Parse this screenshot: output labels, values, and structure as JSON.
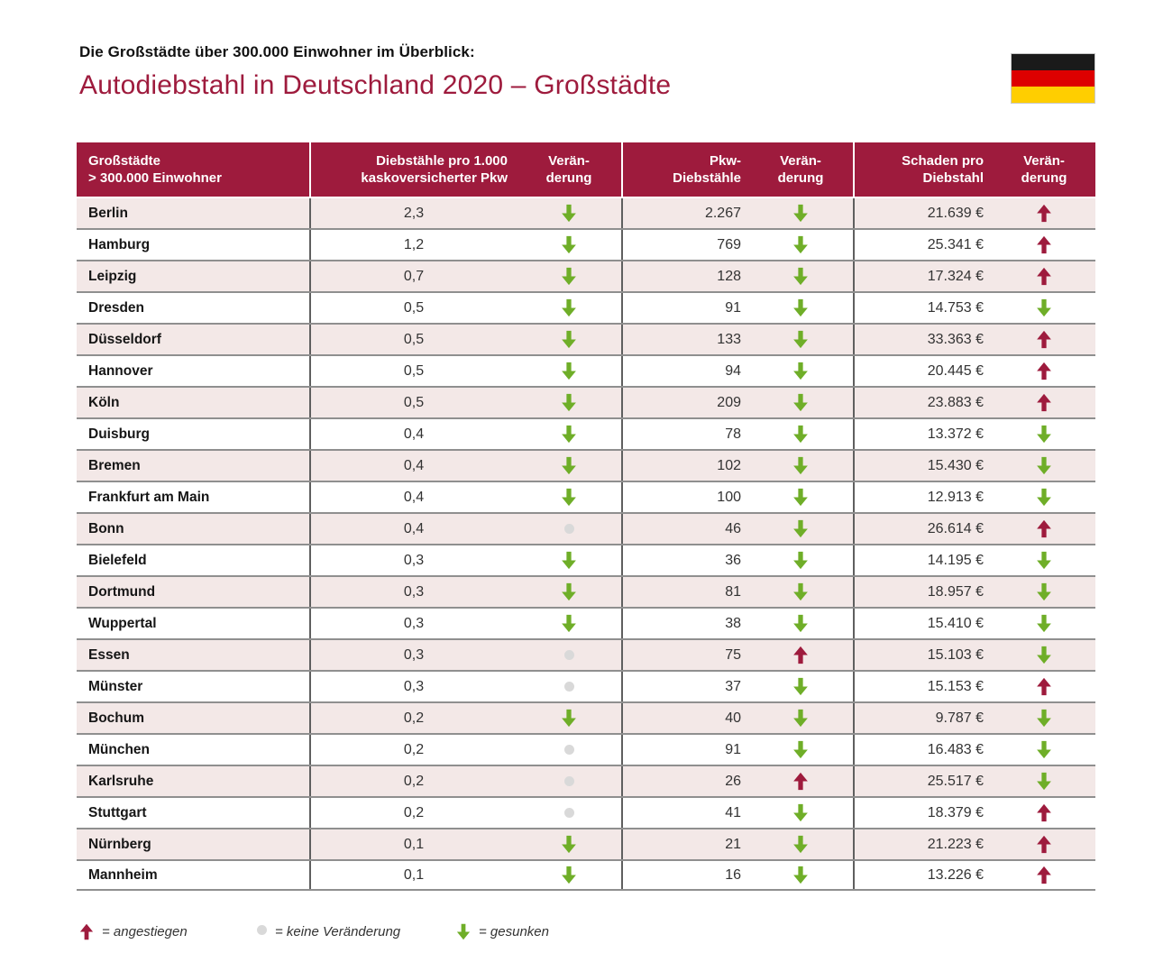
{
  "header": {
    "kicker": "Die Großstädte über 300.000 Einwohner im Überblick:",
    "title": "Autodiebstahl in Deutschland 2020 – Großstädte"
  },
  "flag": {
    "name": "germany-flag",
    "colors": [
      "#1a1a1a",
      "#dd0000",
      "#ffce00"
    ]
  },
  "colors": {
    "accent_red": "#9e1b3d",
    "arrow_green": "#6fae28",
    "neutral_dot": "#d9d9d9",
    "row_pink": "#f3e8e7"
  },
  "table": {
    "columns": [
      "Großstädte\n> 300.000 Einwohner",
      "Diebstähle pro 1.000\nkaskoversicherter Pkw",
      "Verän-\nderung",
      "Pkw-\nDiebstähle",
      "Verän-\nderung",
      "Schaden pro\nDiebstahl",
      "Verän-\nderung"
    ]
  },
  "chart_data": {
    "type": "table",
    "title": "Autodiebstahl in Deutschland 2020 – Großstädte",
    "subtitle": "Die Großstädte über 300.000 Einwohner im Überblick:",
    "columns": [
      "Großstädte > 300.000 Einwohner",
      "Diebstähle pro 1.000 kaskoversicherter Pkw",
      "Veränderung",
      "Pkw-Diebstähle",
      "Veränderung",
      "Schaden pro Diebstahl",
      "Veränderung"
    ],
    "rows": [
      {
        "city": "Berlin",
        "rate": "2,3",
        "rate_change": "down",
        "thefts": "2.267",
        "thefts_change": "down",
        "damage": "21.639 €",
        "damage_change": "up"
      },
      {
        "city": "Hamburg",
        "rate": "1,2",
        "rate_change": "down",
        "thefts": "769",
        "thefts_change": "down",
        "damage": "25.341 €",
        "damage_change": "up"
      },
      {
        "city": "Leipzig",
        "rate": "0,7",
        "rate_change": "down",
        "thefts": "128",
        "thefts_change": "down",
        "damage": "17.324 €",
        "damage_change": "up"
      },
      {
        "city": "Dresden",
        "rate": "0,5",
        "rate_change": "down",
        "thefts": "91",
        "thefts_change": "down",
        "damage": "14.753 €",
        "damage_change": "down"
      },
      {
        "city": "Düsseldorf",
        "rate": "0,5",
        "rate_change": "down",
        "thefts": "133",
        "thefts_change": "down",
        "damage": "33.363 €",
        "damage_change": "up"
      },
      {
        "city": "Hannover",
        "rate": "0,5",
        "rate_change": "down",
        "thefts": "94",
        "thefts_change": "down",
        "damage": "20.445 €",
        "damage_change": "up"
      },
      {
        "city": "Köln",
        "rate": "0,5",
        "rate_change": "down",
        "thefts": "209",
        "thefts_change": "down",
        "damage": "23.883 €",
        "damage_change": "up"
      },
      {
        "city": "Duisburg",
        "rate": "0,4",
        "rate_change": "down",
        "thefts": "78",
        "thefts_change": "down",
        "damage": "13.372 €",
        "damage_change": "down"
      },
      {
        "city": "Bremen",
        "rate": "0,4",
        "rate_change": "down",
        "thefts": "102",
        "thefts_change": "down",
        "damage": "15.430 €",
        "damage_change": "down"
      },
      {
        "city": "Frankfurt am Main",
        "rate": "0,4",
        "rate_change": "down",
        "thefts": "100",
        "thefts_change": "down",
        "damage": "12.913 €",
        "damage_change": "down"
      },
      {
        "city": "Bonn",
        "rate": "0,4",
        "rate_change": "none",
        "thefts": "46",
        "thefts_change": "down",
        "damage": "26.614 €",
        "damage_change": "up"
      },
      {
        "city": "Bielefeld",
        "rate": "0,3",
        "rate_change": "down",
        "thefts": "36",
        "thefts_change": "down",
        "damage": "14.195 €",
        "damage_change": "down"
      },
      {
        "city": "Dortmund",
        "rate": "0,3",
        "rate_change": "down",
        "thefts": "81",
        "thefts_change": "down",
        "damage": "18.957 €",
        "damage_change": "down"
      },
      {
        "city": "Wuppertal",
        "rate": "0,3",
        "rate_change": "down",
        "thefts": "38",
        "thefts_change": "down",
        "damage": "15.410 €",
        "damage_change": "down"
      },
      {
        "city": "Essen",
        "rate": "0,3",
        "rate_change": "none",
        "thefts": "75",
        "thefts_change": "up",
        "damage": "15.103 €",
        "damage_change": "down"
      },
      {
        "city": "Münster",
        "rate": "0,3",
        "rate_change": "none",
        "thefts": "37",
        "thefts_change": "down",
        "damage": "15.153 €",
        "damage_change": "up"
      },
      {
        "city": "Bochum",
        "rate": "0,2",
        "rate_change": "down",
        "thefts": "40",
        "thefts_change": "down",
        "damage": "9.787 €",
        "damage_change": "down"
      },
      {
        "city": "München",
        "rate": "0,2",
        "rate_change": "none",
        "thefts": "91",
        "thefts_change": "down",
        "damage": "16.483 €",
        "damage_change": "down"
      },
      {
        "city": "Karlsruhe",
        "rate": "0,2",
        "rate_change": "none",
        "thefts": "26",
        "thefts_change": "up",
        "damage": "25.517 €",
        "damage_change": "down"
      },
      {
        "city": "Stuttgart",
        "rate": "0,2",
        "rate_change": "none",
        "thefts": "41",
        "thefts_change": "down",
        "damage": "18.379 €",
        "damage_change": "up"
      },
      {
        "city": "Nürnberg",
        "rate": "0,1",
        "rate_change": "down",
        "thefts": "21",
        "thefts_change": "down",
        "damage": "21.223 €",
        "damage_change": "up"
      },
      {
        "city": "Mannheim",
        "rate": "0,1",
        "rate_change": "down",
        "thefts": "16",
        "thefts_change": "down",
        "damage": "13.226 €",
        "damage_change": "up"
      }
    ]
  },
  "legend": [
    {
      "symbol": "up",
      "label": "= angestiegen"
    },
    {
      "symbol": "none",
      "label": "= keine Veränderung"
    },
    {
      "symbol": "down",
      "label": "= gesunken"
    }
  ]
}
